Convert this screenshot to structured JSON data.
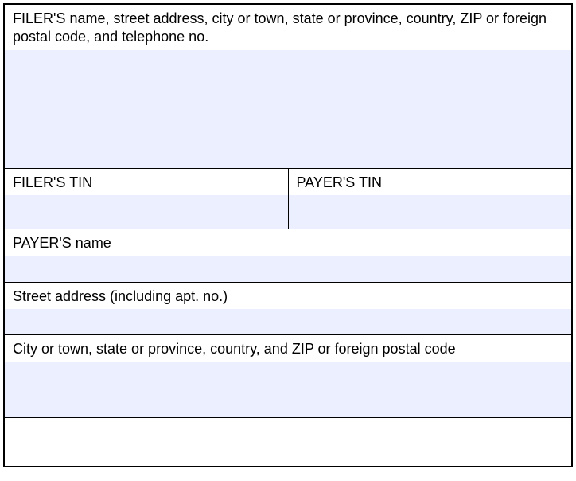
{
  "form": {
    "filer_name": {
      "label": "FILER'S name, street address, city or town, state or province, country, ZIP or foreign postal code, and telephone no.",
      "value": ""
    },
    "filer_tin": {
      "label": "FILER'S TIN",
      "value": ""
    },
    "payer_tin": {
      "label": "PAYER'S TIN",
      "value": ""
    },
    "payer_name": {
      "label": "PAYER'S name",
      "value": ""
    },
    "street_address": {
      "label": "Street address (including apt. no.)",
      "value": ""
    },
    "city_state": {
      "label": "City or town, state or province, country, and ZIP or foreign postal code",
      "value": ""
    }
  },
  "style": {
    "input_background": "#ebefff",
    "border_color": "#000000",
    "text_color": "#000000",
    "label_fontsize": 18
  }
}
